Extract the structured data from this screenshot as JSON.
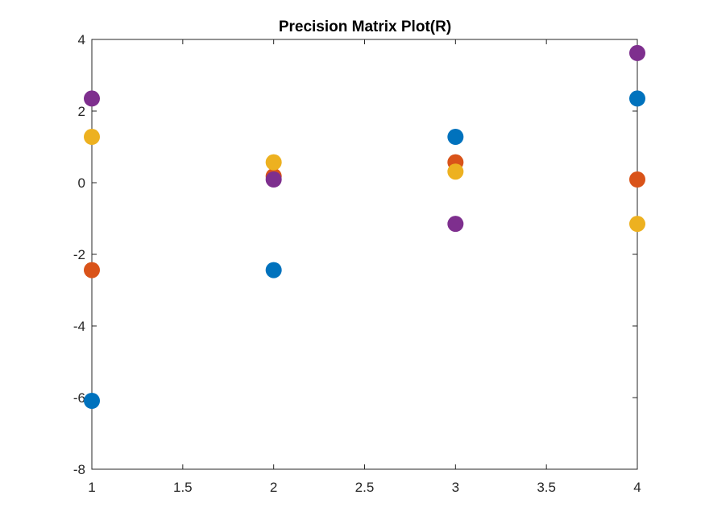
{
  "chart_data": {
    "type": "scatter",
    "title": "Precision Matrix Plot(R)",
    "xlabel": "",
    "ylabel": "",
    "xlim": [
      1,
      4
    ],
    "ylim": [
      -8,
      4
    ],
    "xticks": [
      1,
      1.5,
      2,
      2.5,
      3,
      3.5,
      4
    ],
    "xtick_labels": [
      "1",
      "1.5",
      "2",
      "2.5",
      "3",
      "3.5",
      "4"
    ],
    "yticks": [
      -8,
      -6,
      -4,
      -2,
      0,
      2,
      4
    ],
    "ytick_labels": [
      "-8",
      "-6",
      "-4",
      "-2",
      "0",
      "2",
      "4"
    ],
    "grid": false,
    "legend": "none",
    "x": [
      1,
      2,
      3,
      4
    ],
    "series": [
      {
        "color": "#0072BD",
        "values": [
          -6.09,
          -2.44,
          1.28,
          2.35
        ]
      },
      {
        "color": "#D95319",
        "values": [
          -2.44,
          0.18,
          0.57,
          0.09
        ]
      },
      {
        "color": "#EDB120",
        "values": [
          1.28,
          0.57,
          0.31,
          -1.15
        ]
      },
      {
        "color": "#7E2F8E",
        "values": [
          2.35,
          0.09,
          -1.15,
          3.62
        ]
      }
    ]
  }
}
